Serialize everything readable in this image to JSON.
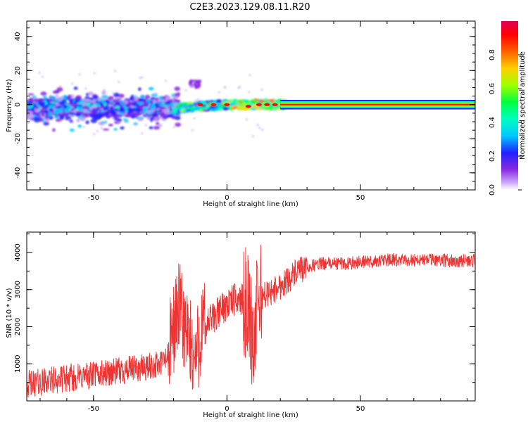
{
  "figure_title": "C2E3.2023.129.08.11.R20",
  "chart_data": [
    {
      "type": "heatmap",
      "xlabel": "Height of straight line (km)",
      "ylabel": "Frequency (Hz)",
      "xlim": [
        -75,
        93
      ],
      "ylim": [
        -50,
        49
      ],
      "xticks": [
        -50,
        0,
        50
      ],
      "yticks": [
        -40,
        -20,
        0,
        20,
        40
      ],
      "colorbar": {
        "label": "Normalized spectral amplitude",
        "range": [
          0,
          1
        ],
        "ticks": [
          "0.0",
          "0.2",
          "0.4",
          "0.6",
          "0.8"
        ],
        "colors": [
          "#ffffff",
          "#c79cf7",
          "#8a2be2",
          "#2020ff",
          "#00c8ff",
          "#00ffc0",
          "#00ff40",
          "#a0ff00",
          "#ffd000",
          "#ff6000",
          "#ff0000",
          "#e0005a"
        ]
      },
      "features": [
        {
          "name": "broad speckle",
          "x_range": [
            -75,
            -18
          ],
          "freq_range": [
            -10,
            6
          ],
          "amplitude": "0.2-0.5"
        },
        {
          "name": "tail",
          "x_range": [
            -18,
            20
          ],
          "freq_center": 0,
          "amplitude": "0.4-0.9"
        },
        {
          "name": "clean line",
          "x_range": [
            20,
            93
          ],
          "freq_center": 0,
          "amplitude": "1.0"
        }
      ]
    },
    {
      "type": "line",
      "xlabel": "Height of straight line (km)",
      "ylabel": "SNR (10 * v/v)",
      "xlim": [
        -75,
        93
      ],
      "ylim": [
        0,
        4550
      ],
      "xticks": [
        -50,
        0,
        50
      ],
      "yticks": [
        1000,
        2000,
        3000,
        4000
      ],
      "color": "#ee3333",
      "series": [
        {
          "x": [
            -75,
            -70,
            -65,
            -60,
            -55,
            -50,
            -45,
            -40,
            -35,
            -30,
            -25,
            -22,
            -20,
            -18,
            -16,
            -14,
            -12,
            -10,
            -8,
            -6,
            -4,
            -2,
            0,
            2,
            4,
            6,
            8,
            9,
            10,
            11,
            12,
            14,
            16,
            18,
            20,
            25,
            30,
            35,
            40,
            45,
            50,
            55,
            60,
            65,
            70,
            75,
            80,
            85,
            93
          ],
          "y": [
            450,
            500,
            560,
            600,
            650,
            700,
            750,
            800,
            850,
            900,
            1000,
            1200,
            2000,
            2500,
            2000,
            1500,
            1100,
            1800,
            2000,
            2200,
            2300,
            2500,
            2600,
            2700,
            2750,
            2700,
            2600,
            2000,
            1500,
            2300,
            2800,
            2850,
            2900,
            3000,
            3100,
            3400,
            3600,
            3700,
            3700,
            3700,
            3750,
            3750,
            3800,
            3780,
            3800,
            3800,
            3800,
            3780,
            3780
          ]
        }
      ]
    }
  ]
}
